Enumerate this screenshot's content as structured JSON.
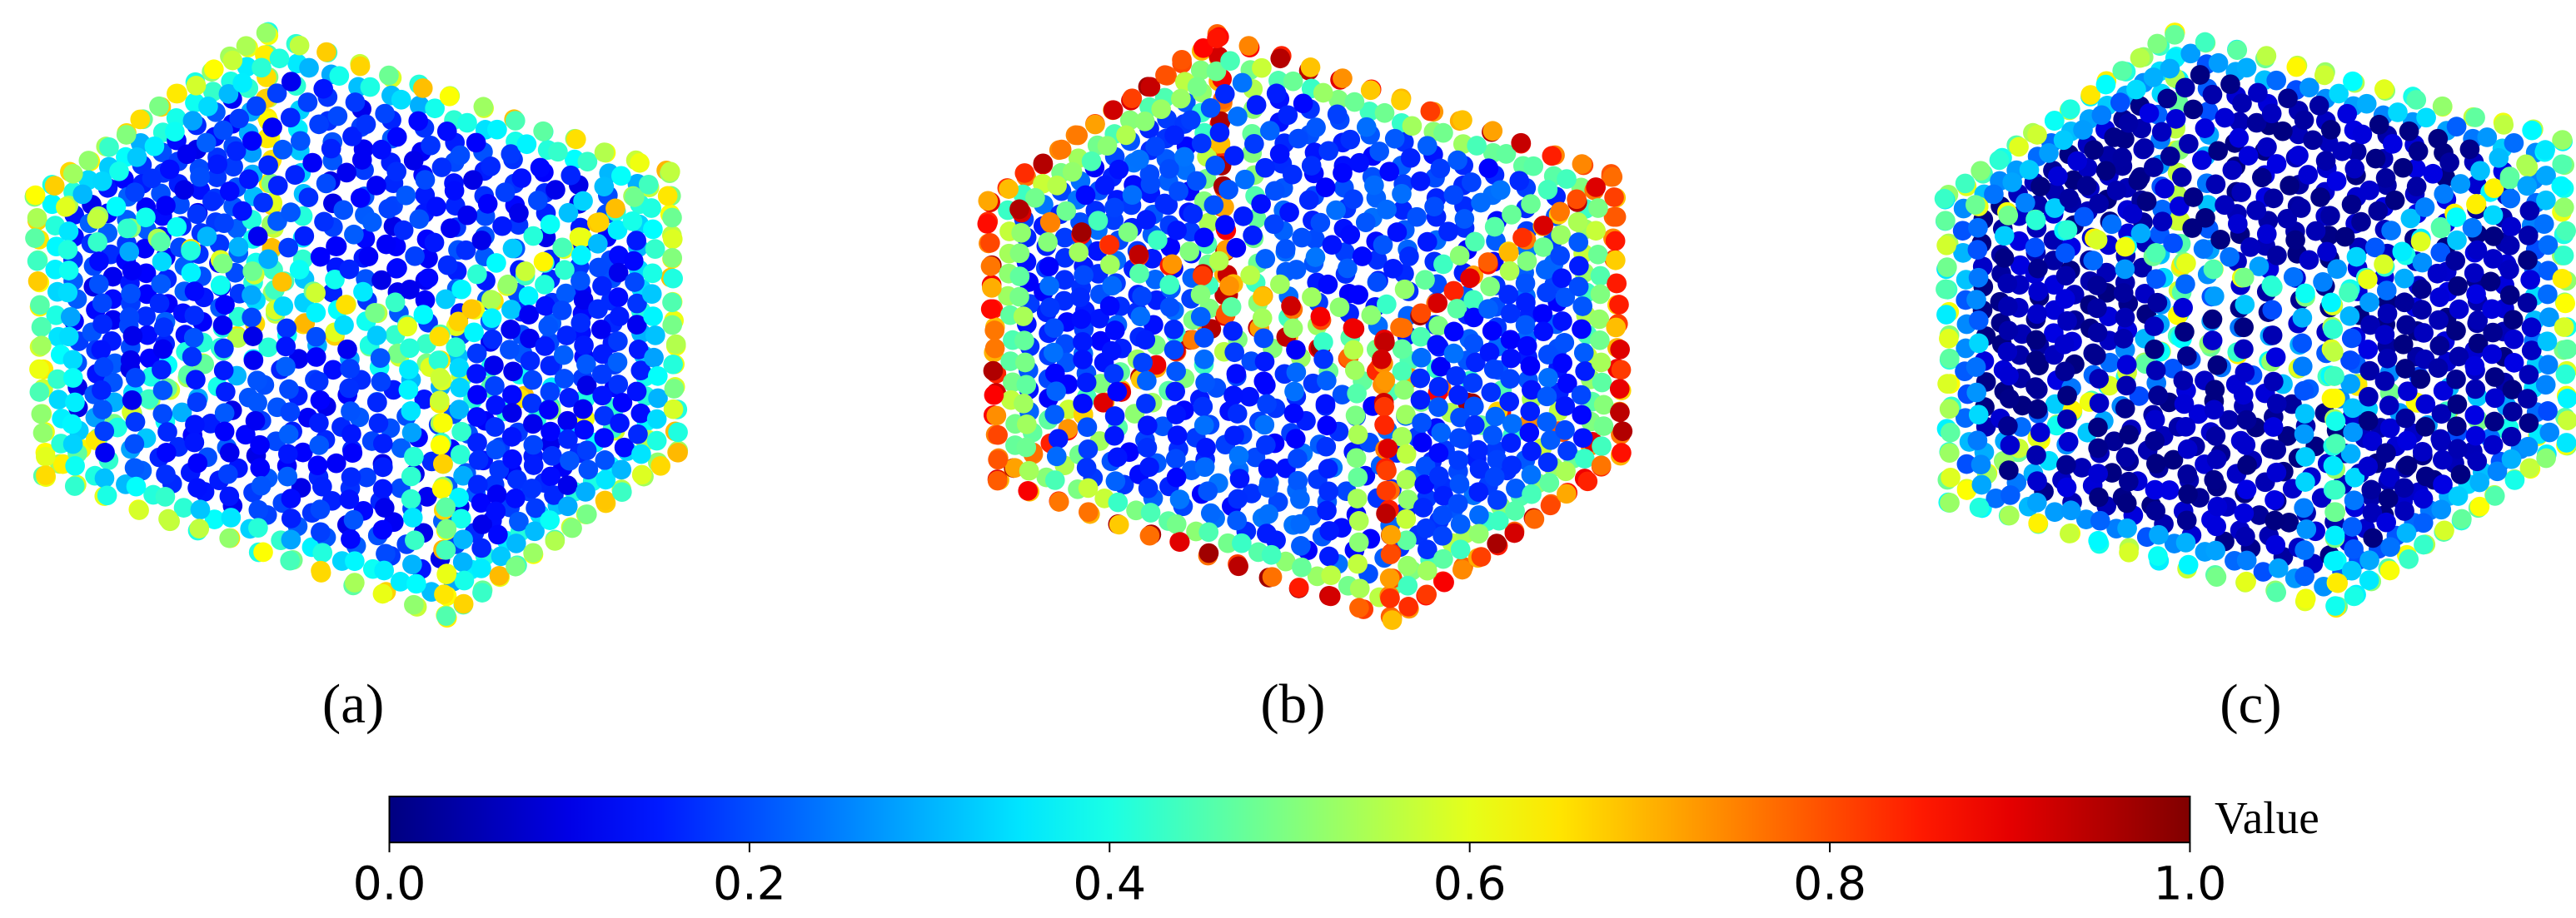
{
  "panels": [
    {
      "label": "(a)"
    },
    {
      "label": "(b)"
    },
    {
      "label": "(c)"
    }
  ],
  "colorbar": {
    "title": "Value",
    "lim": [
      0,
      1
    ],
    "ticks": [
      {
        "value": 0,
        "label": "0.0"
      },
      {
        "value": 0.2,
        "label": "0.2"
      },
      {
        "value": 0.4,
        "label": "0.4"
      },
      {
        "value": 0.6,
        "label": "0.6"
      },
      {
        "value": 0.8,
        "label": "0.8"
      },
      {
        "value": 1,
        "label": "1.0"
      }
    ]
  }
}
